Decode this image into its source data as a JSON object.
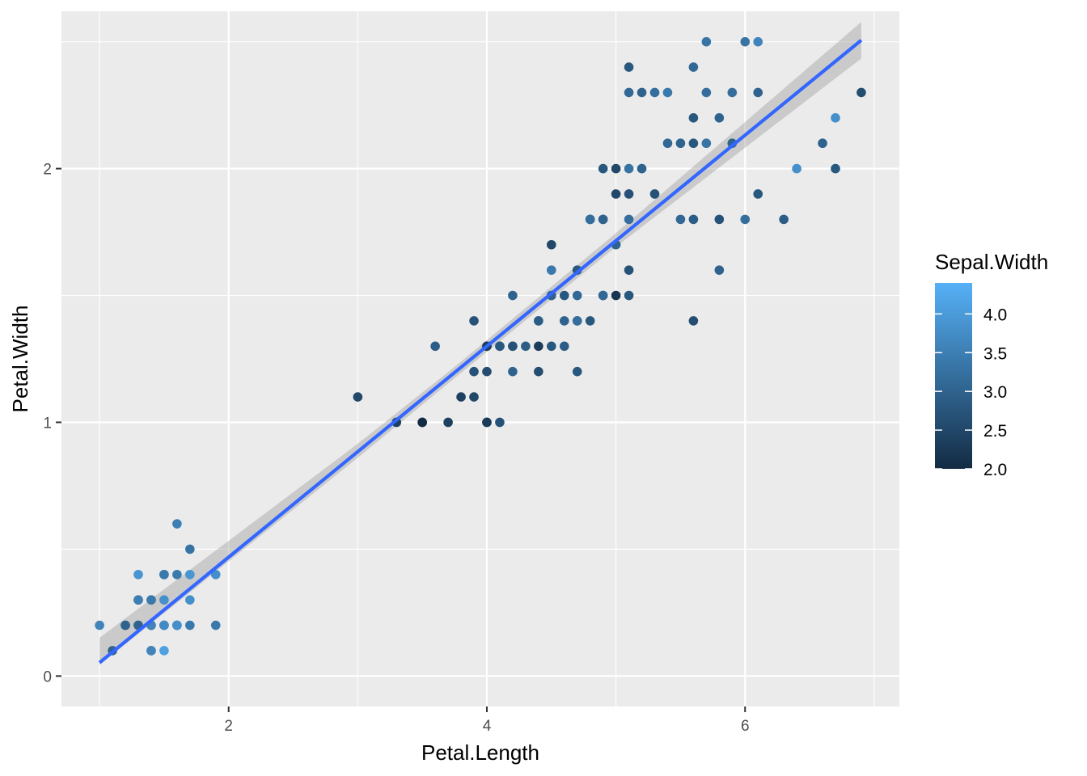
{
  "chart_data": {
    "type": "scatter",
    "title": "",
    "xlabel": "Petal.Length",
    "ylabel": "Petal.Width",
    "xlim": [
      0.705,
      7.195
    ],
    "ylim": [
      -0.12,
      2.62
    ],
    "x_ticks": [
      2,
      4,
      6
    ],
    "x_tick_labels": [
      "2",
      "4",
      "6"
    ],
    "y_ticks": [
      0,
      1,
      2
    ],
    "y_tick_labels": [
      "0",
      "1",
      "2"
    ],
    "grid": true,
    "legend": {
      "title": "Sepal.Width",
      "placement": "right",
      "type": "colorbar",
      "min": 2.0,
      "max": 4.4,
      "breaks": [
        2.0,
        2.5,
        3.0,
        3.5,
        4.0
      ],
      "break_labels": [
        "2.0",
        "2.5",
        "3.0",
        "3.5",
        "4.0"
      ],
      "low_color": "#132B43",
      "high_color": "#56B1F7"
    },
    "fit": {
      "method": "lm",
      "x_range": [
        1.0,
        6.9
      ],
      "intercept": -0.363,
      "slope": 0.4158,
      "se_band": [
        [
          1.0,
          0.098,
          0.009
        ],
        [
          3.0,
          0.031,
          0.024
        ],
        [
          3.76,
          0.022,
          0.022
        ],
        [
          5.0,
          0.03,
          0.024
        ],
        [
          6.9,
          0.072,
          0.072
        ]
      ],
      "line_color": "#3366FF",
      "band_color": "#999999"
    },
    "series": [
      {
        "name": "",
        "points": [
          {
            "x": 1.0,
            "y": 0.2,
            "c": 3.6
          },
          {
            "x": 1.1,
            "y": 0.1,
            "c": 3.0
          },
          {
            "x": 1.2,
            "y": 0.2,
            "c": 3.2
          },
          {
            "x": 1.2,
            "y": 0.2,
            "c": 3.0
          },
          {
            "x": 1.3,
            "y": 0.2,
            "c": 3.2
          },
          {
            "x": 1.3,
            "y": 0.2,
            "c": 3.0
          },
          {
            "x": 1.3,
            "y": 0.3,
            "c": 2.3
          },
          {
            "x": 1.3,
            "y": 0.3,
            "c": 3.5
          },
          {
            "x": 1.3,
            "y": 0.4,
            "c": 3.9
          },
          {
            "x": 1.4,
            "y": 0.1,
            "c": 3.0
          },
          {
            "x": 1.4,
            "y": 0.1,
            "c": 3.6
          },
          {
            "x": 1.4,
            "y": 0.2,
            "c": 3.0
          },
          {
            "x": 1.4,
            "y": 0.2,
            "c": 3.2
          },
          {
            "x": 1.4,
            "y": 0.2,
            "c": 3.6
          },
          {
            "x": 1.4,
            "y": 0.3,
            "c": 3.0
          },
          {
            "x": 1.4,
            "y": 0.3,
            "c": 3.4
          },
          {
            "x": 1.5,
            "y": 0.1,
            "c": 4.1
          },
          {
            "x": 1.5,
            "y": 0.2,
            "c": 3.1
          },
          {
            "x": 1.5,
            "y": 0.2,
            "c": 3.4
          },
          {
            "x": 1.5,
            "y": 0.2,
            "c": 3.7
          },
          {
            "x": 1.5,
            "y": 0.3,
            "c": 3.8
          },
          {
            "x": 1.5,
            "y": 0.4,
            "c": 3.7
          },
          {
            "x": 1.5,
            "y": 0.4,
            "c": 3.4
          },
          {
            "x": 1.6,
            "y": 0.2,
            "c": 3.1
          },
          {
            "x": 1.6,
            "y": 0.2,
            "c": 3.4
          },
          {
            "x": 1.6,
            "y": 0.2,
            "c": 3.8
          },
          {
            "x": 1.6,
            "y": 0.4,
            "c": 3.4
          },
          {
            "x": 1.6,
            "y": 0.6,
            "c": 3.5
          },
          {
            "x": 1.7,
            "y": 0.2,
            "c": 3.4
          },
          {
            "x": 1.7,
            "y": 0.3,
            "c": 3.8
          },
          {
            "x": 1.7,
            "y": 0.4,
            "c": 3.9
          },
          {
            "x": 1.7,
            "y": 0.5,
            "c": 3.3
          },
          {
            "x": 1.9,
            "y": 0.2,
            "c": 3.4
          },
          {
            "x": 1.9,
            "y": 0.4,
            "c": 3.8
          },
          {
            "x": 3.0,
            "y": 1.1,
            "c": 2.5
          },
          {
            "x": 3.3,
            "y": 1.0,
            "c": 2.4
          },
          {
            "x": 3.5,
            "y": 1.0,
            "c": 2.6
          },
          {
            "x": 3.5,
            "y": 1.0,
            "c": 2.0
          },
          {
            "x": 3.6,
            "y": 1.3,
            "c": 2.9
          },
          {
            "x": 3.7,
            "y": 1.0,
            "c": 2.4
          },
          {
            "x": 3.8,
            "y": 1.1,
            "c": 2.4
          },
          {
            "x": 3.9,
            "y": 1.1,
            "c": 2.5
          },
          {
            "x": 3.9,
            "y": 1.2,
            "c": 2.7
          },
          {
            "x": 3.9,
            "y": 1.4,
            "c": 2.7
          },
          {
            "x": 4.0,
            "y": 1.0,
            "c": 2.2
          },
          {
            "x": 4.0,
            "y": 1.0,
            "c": 2.3
          },
          {
            "x": 4.0,
            "y": 1.2,
            "c": 2.6
          },
          {
            "x": 4.0,
            "y": 1.3,
            "c": 2.8
          },
          {
            "x": 4.0,
            "y": 1.3,
            "c": 2.3
          },
          {
            "x": 4.1,
            "y": 1.0,
            "c": 2.7
          },
          {
            "x": 4.1,
            "y": 1.3,
            "c": 3.0
          },
          {
            "x": 4.1,
            "y": 1.3,
            "c": 2.8
          },
          {
            "x": 4.2,
            "y": 1.2,
            "c": 3.0
          },
          {
            "x": 4.2,
            "y": 1.3,
            "c": 2.9
          },
          {
            "x": 4.2,
            "y": 1.3,
            "c": 2.7
          },
          {
            "x": 4.2,
            "y": 1.5,
            "c": 3.0
          },
          {
            "x": 4.3,
            "y": 1.3,
            "c": 2.9
          },
          {
            "x": 4.4,
            "y": 1.2,
            "c": 2.6
          },
          {
            "x": 4.4,
            "y": 1.3,
            "c": 2.3
          },
          {
            "x": 4.4,
            "y": 1.4,
            "c": 3.0
          },
          {
            "x": 4.4,
            "y": 1.4,
            "c": 2.9
          },
          {
            "x": 4.5,
            "y": 1.3,
            "c": 2.8
          },
          {
            "x": 4.5,
            "y": 1.5,
            "c": 2.8
          },
          {
            "x": 4.5,
            "y": 1.5,
            "c": 3.0
          },
          {
            "x": 4.5,
            "y": 1.6,
            "c": 3.4
          },
          {
            "x": 4.5,
            "y": 1.7,
            "c": 2.5
          },
          {
            "x": 4.6,
            "y": 1.3,
            "c": 2.9
          },
          {
            "x": 4.6,
            "y": 1.4,
            "c": 3.0
          },
          {
            "x": 4.6,
            "y": 1.5,
            "c": 2.8
          },
          {
            "x": 4.7,
            "y": 1.2,
            "c": 2.8
          },
          {
            "x": 4.7,
            "y": 1.4,
            "c": 2.9
          },
          {
            "x": 4.7,
            "y": 1.4,
            "c": 3.2
          },
          {
            "x": 4.7,
            "y": 1.5,
            "c": 3.1
          },
          {
            "x": 4.7,
            "y": 1.6,
            "c": 2.8
          },
          {
            "x": 4.8,
            "y": 1.4,
            "c": 2.8
          },
          {
            "x": 4.8,
            "y": 1.8,
            "c": 3.0
          },
          {
            "x": 4.8,
            "y": 1.8,
            "c": 2.8
          },
          {
            "x": 4.8,
            "y": 1.8,
            "c": 3.2
          },
          {
            "x": 4.9,
            "y": 1.5,
            "c": 2.5
          },
          {
            "x": 4.9,
            "y": 1.5,
            "c": 3.1
          },
          {
            "x": 4.9,
            "y": 1.8,
            "c": 2.7
          },
          {
            "x": 4.9,
            "y": 1.8,
            "c": 3.0
          },
          {
            "x": 4.9,
            "y": 2.0,
            "c": 2.8
          },
          {
            "x": 5.0,
            "y": 1.5,
            "c": 2.2
          },
          {
            "x": 5.0,
            "y": 1.7,
            "c": 3.0
          },
          {
            "x": 5.0,
            "y": 1.9,
            "c": 2.5
          },
          {
            "x": 5.0,
            "y": 2.0,
            "c": 2.5
          },
          {
            "x": 5.1,
            "y": 1.5,
            "c": 2.8
          },
          {
            "x": 5.1,
            "y": 1.6,
            "c": 2.7
          },
          {
            "x": 5.1,
            "y": 1.8,
            "c": 3.2
          },
          {
            "x": 5.1,
            "y": 1.9,
            "c": 2.7
          },
          {
            "x": 5.1,
            "y": 2.0,
            "c": 3.3
          },
          {
            "x": 5.1,
            "y": 2.3,
            "c": 3.1
          },
          {
            "x": 5.1,
            "y": 2.4,
            "c": 2.8
          },
          {
            "x": 5.2,
            "y": 2.0,
            "c": 3.0
          },
          {
            "x": 5.2,
            "y": 2.3,
            "c": 3.0
          },
          {
            "x": 5.3,
            "y": 1.9,
            "c": 2.7
          },
          {
            "x": 5.3,
            "y": 2.3,
            "c": 3.2
          },
          {
            "x": 5.4,
            "y": 2.1,
            "c": 3.1
          },
          {
            "x": 5.4,
            "y": 2.3,
            "c": 3.4
          },
          {
            "x": 5.5,
            "y": 1.8,
            "c": 3.1
          },
          {
            "x": 5.5,
            "y": 2.1,
            "c": 3.0
          },
          {
            "x": 5.6,
            "y": 1.4,
            "c": 2.6
          },
          {
            "x": 5.6,
            "y": 1.8,
            "c": 2.9
          },
          {
            "x": 5.6,
            "y": 2.1,
            "c": 2.8
          },
          {
            "x": 5.6,
            "y": 2.2,
            "c": 2.8
          },
          {
            "x": 5.6,
            "y": 2.4,
            "c": 3.1
          },
          {
            "x": 5.7,
            "y": 2.1,
            "c": 3.3
          },
          {
            "x": 5.7,
            "y": 2.3,
            "c": 3.2
          },
          {
            "x": 5.7,
            "y": 2.5,
            "c": 3.3
          },
          {
            "x": 5.8,
            "y": 1.6,
            "c": 3.0
          },
          {
            "x": 5.8,
            "y": 1.8,
            "c": 2.7
          },
          {
            "x": 5.8,
            "y": 2.2,
            "c": 3.0
          },
          {
            "x": 5.9,
            "y": 2.1,
            "c": 3.0
          },
          {
            "x": 5.9,
            "y": 2.3,
            "c": 3.2
          },
          {
            "x": 6.0,
            "y": 1.8,
            "c": 3.2
          },
          {
            "x": 6.0,
            "y": 2.5,
            "c": 3.3
          },
          {
            "x": 6.1,
            "y": 1.9,
            "c": 2.8
          },
          {
            "x": 6.1,
            "y": 2.3,
            "c": 3.0
          },
          {
            "x": 6.1,
            "y": 2.5,
            "c": 3.6
          },
          {
            "x": 6.3,
            "y": 1.8,
            "c": 2.9
          },
          {
            "x": 6.4,
            "y": 2.0,
            "c": 3.8
          },
          {
            "x": 6.6,
            "y": 2.1,
            "c": 3.0
          },
          {
            "x": 6.7,
            "y": 2.0,
            "c": 2.8
          },
          {
            "x": 6.7,
            "y": 2.2,
            "c": 3.8
          },
          {
            "x": 6.9,
            "y": 2.3,
            "c": 2.6
          }
        ]
      }
    ]
  }
}
